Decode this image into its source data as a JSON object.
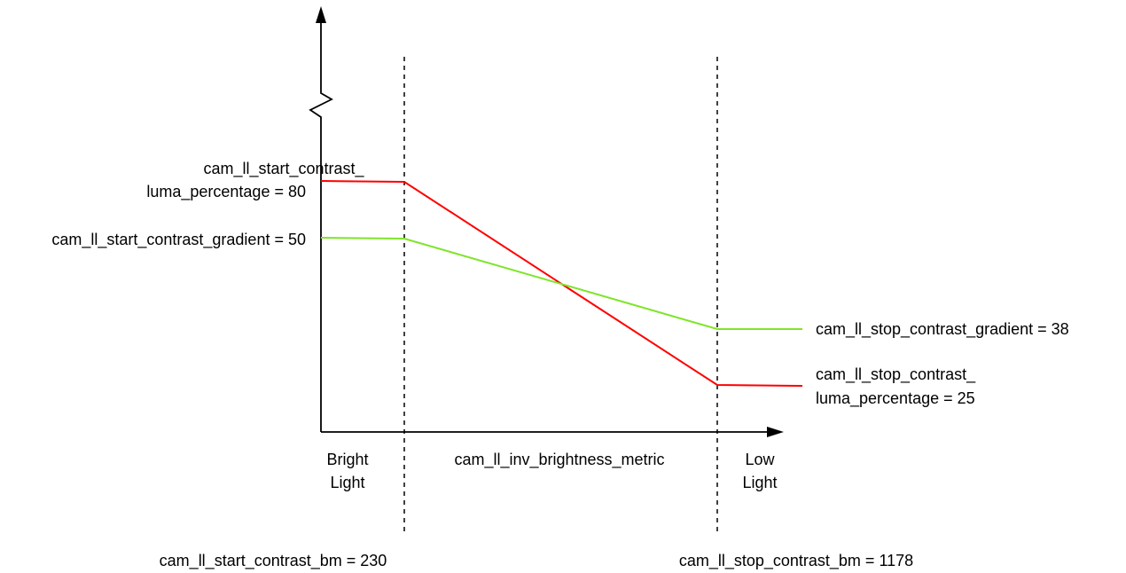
{
  "colors": {
    "luma_line": "#ff0000",
    "gradient_line": "#7fe52a",
    "axis": "#000000",
    "guide": "#000000"
  },
  "labels": {
    "start_luma_line1": "cam_ll_start_contrast_",
    "start_luma_line2": "luma_percentage = 80",
    "start_gradient": "cam_ll_start_contrast_gradient = 50",
    "stop_gradient": "cam_ll_stop_contrast_gradient = 38",
    "stop_luma_line1": "cam_ll_stop_contrast_",
    "stop_luma_line2": "luma_percentage = 25",
    "region_bright_line1": "Bright",
    "region_bright_line2": "Light",
    "x_axis_metric": "cam_ll_inv_brightness_metric",
    "region_low_line1": "Low",
    "region_low_line2": "Light",
    "start_bm": "cam_ll_start_contrast_bm = 230",
    "stop_bm": "cam_ll_stop_contrast_bm = 1178"
  },
  "series": {
    "luma_percentage": {
      "start": 80,
      "stop": 25
    },
    "contrast_gradient": {
      "start": 50,
      "stop": 38
    }
  },
  "breakpoints": {
    "start_bm": 230,
    "stop_bm": 1178
  }
}
